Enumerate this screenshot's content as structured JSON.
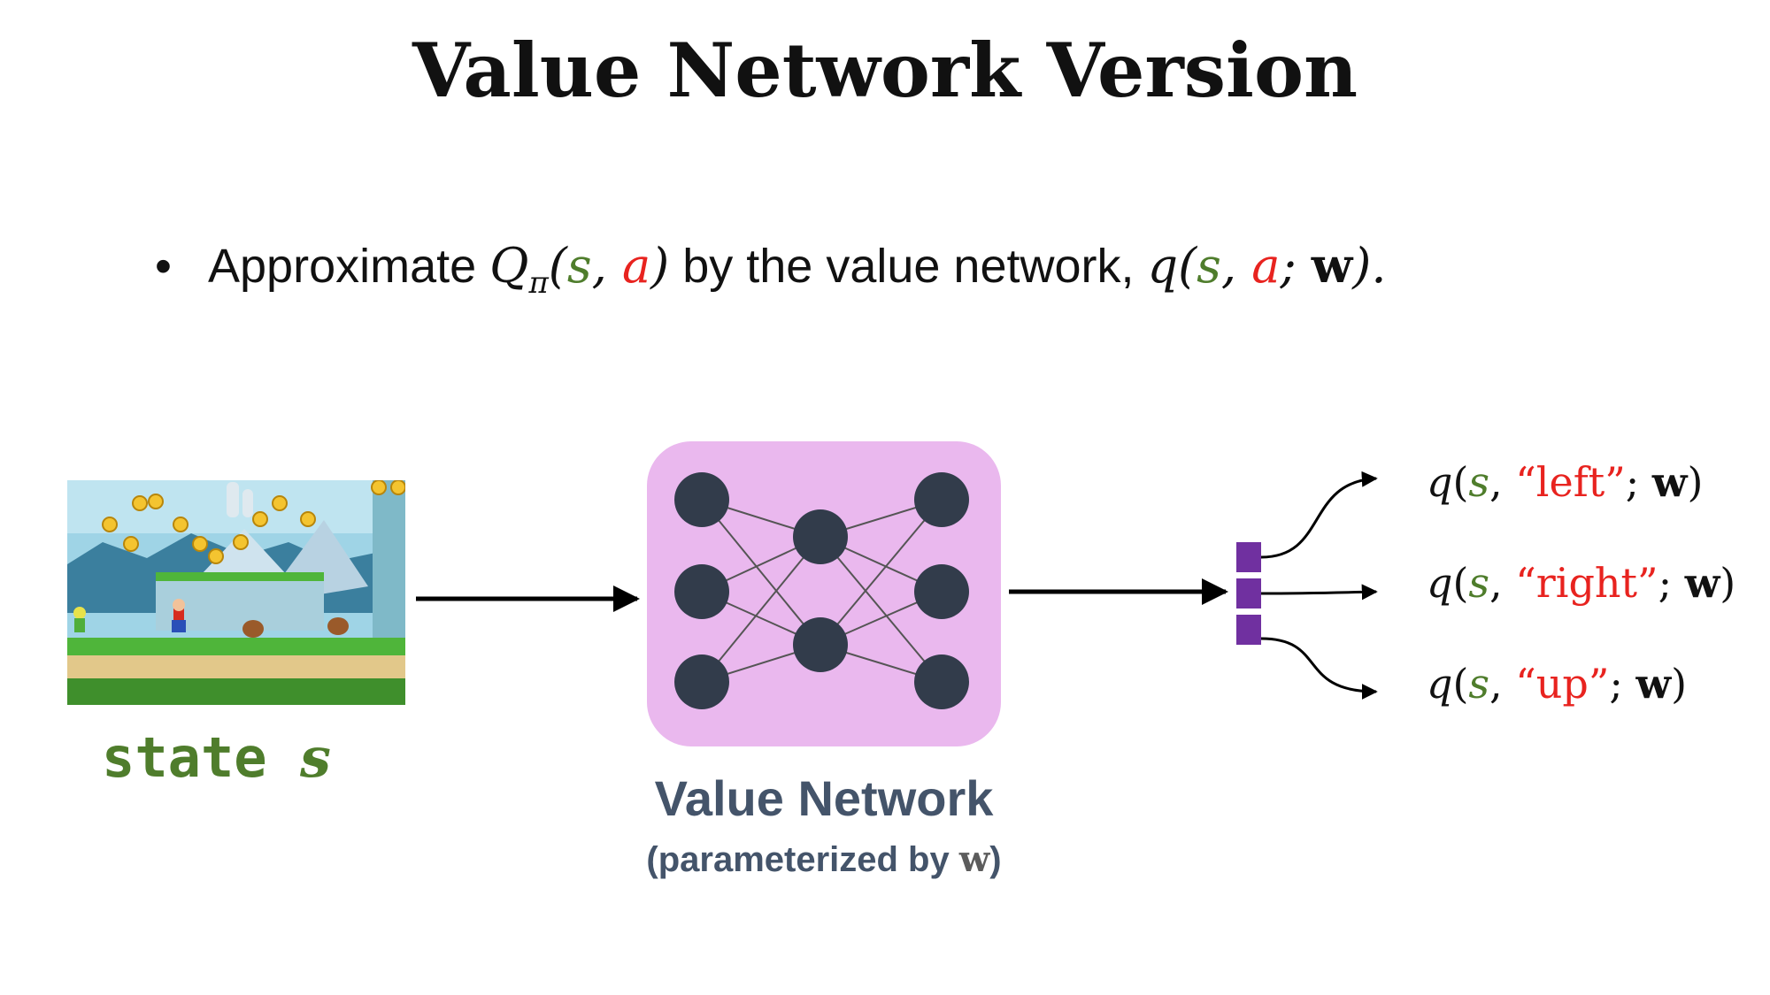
{
  "slide": {
    "title": "Value Network Version",
    "bullet": {
      "marker": "•",
      "text1": "Approximate ",
      "Q": "Q",
      "pi": "π",
      "open1": "(",
      "s1": "s",
      "comma1": ", ",
      "a1": "a",
      "close1": ")",
      "text2": " by the value network, ",
      "q": "q",
      "open2": "(",
      "s2": "s",
      "comma2": ", ",
      "a2": "a",
      "semi": "; ",
      "w": "w",
      "close2": ")."
    }
  },
  "input": {
    "label_word": "state ",
    "label_var": "s"
  },
  "network": {
    "title": "Value Network",
    "subtitle_pre": "(parameterized by ",
    "subtitle_w": "w",
    "subtitle_post": ")"
  },
  "outputs": [
    {
      "q": "q",
      "open": "(",
      "s": "s",
      "comma": ", ",
      "action": "“left”",
      "semi": "; ",
      "w": "w",
      "close": ")"
    },
    {
      "q": "q",
      "open": "(",
      "s": "s",
      "comma": ", ",
      "action": "“right”",
      "semi": "; ",
      "w": "w",
      "close": ")"
    },
    {
      "q": "q",
      "open": "(",
      "s": "s",
      "comma": ", ",
      "action": "“up”",
      "semi": "; ",
      "w": "w",
      "close": ")"
    }
  ],
  "colors": {
    "state": "#4f7d2c",
    "action": "#e8231f",
    "network_bg": "#eab8ee",
    "node": "#323c4b",
    "output_cell": "#7030a0",
    "label": "#44546a"
  }
}
